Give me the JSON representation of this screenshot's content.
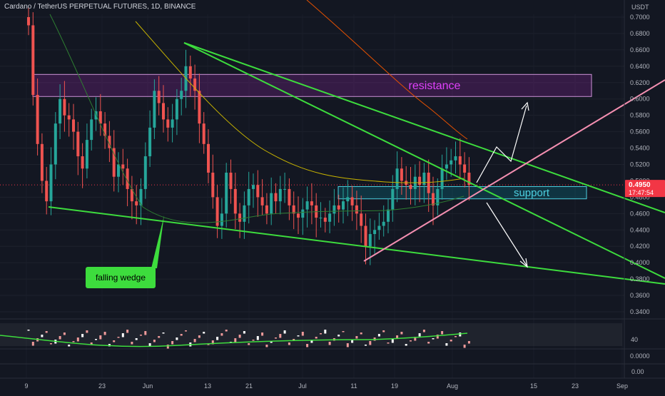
{
  "header": {
    "symbol_line": "Cardano / TetherUS PERPETUAL FUTURES, 1D, BINANCE",
    "currency": "USDT"
  },
  "price_axis": {
    "ticks": [
      "0.7000",
      "0.6800",
      "0.6600",
      "0.6400",
      "0.6200",
      "0.6000",
      "0.5800",
      "0.5600",
      "0.5400",
      "0.5200",
      "0.4800",
      "0.4600",
      "0.4400",
      "0.4200",
      "0.4000",
      "0.3800",
      "0.3600",
      "0.3400"
    ],
    "partial_tick": "0.5000",
    "current_price": "0.4950",
    "countdown": "17:47:54"
  },
  "indicator_axis": {
    "rsi_tick": "40",
    "tick_a": "0.0000",
    "tick_b": "0.00"
  },
  "time_axis": {
    "labels": [
      "9",
      "23",
      "Jun",
      "13",
      "21",
      "Jul",
      "11",
      "19",
      "Aug",
      "15",
      "23",
      "Sep"
    ]
  },
  "annotations": {
    "resistance": "resistance",
    "support": "support",
    "falling_wedge": "falling wedge"
  },
  "colors": {
    "background": "#131722",
    "up_candle": "#26a69a",
    "down_candle": "#ef5350",
    "wedge_lines": "#3ddc3d",
    "resistance_zone": "#9c27b0",
    "support_zone": "#00bcd4",
    "trend_line_pink": "#f48fb1",
    "price_tag": "#f23645"
  },
  "chart_data": {
    "type": "candlestick",
    "title": "Cardano / TetherUS PERPETUAL FUTURES, 1D, BINANCE",
    "ylabel": "USDT",
    "ylim": [
      0.33,
      0.71
    ],
    "resistance_zone": [
      0.603,
      0.63
    ],
    "support_zone": [
      0.478,
      0.493
    ],
    "last_price": 0.495,
    "closes": [
      0.69,
      0.605,
      0.545,
      0.5,
      0.475,
      0.52,
      0.57,
      0.6,
      0.58,
      0.575,
      0.56,
      0.53,
      0.515,
      0.55,
      0.575,
      0.585,
      0.57,
      0.555,
      0.54,
      0.505,
      0.52,
      0.515,
      0.49,
      0.475,
      0.47,
      0.49,
      0.53,
      0.565,
      0.61,
      0.595,
      0.575,
      0.565,
      0.575,
      0.6,
      0.61,
      0.64,
      0.625,
      0.61,
      0.57,
      0.545,
      0.51,
      0.48,
      0.445,
      0.46,
      0.51,
      0.49,
      0.46,
      0.45,
      0.47,
      0.49,
      0.495,
      0.48,
      0.47,
      0.46,
      0.485,
      0.475,
      0.49,
      0.49,
      0.47,
      0.46,
      0.455,
      0.465,
      0.475,
      0.47,
      0.455,
      0.455,
      0.45,
      0.46,
      0.47,
      0.465,
      0.475,
      0.48,
      0.47,
      0.46,
      0.445,
      0.42,
      0.435,
      0.44,
      0.445,
      0.45,
      0.465,
      0.49,
      0.515,
      0.5,
      0.495,
      0.49,
      0.505,
      0.495,
      0.51,
      0.485,
      0.47,
      0.49,
      0.515,
      0.52,
      0.525,
      0.53,
      0.52,
      0.51,
      0.495
    ]
  }
}
